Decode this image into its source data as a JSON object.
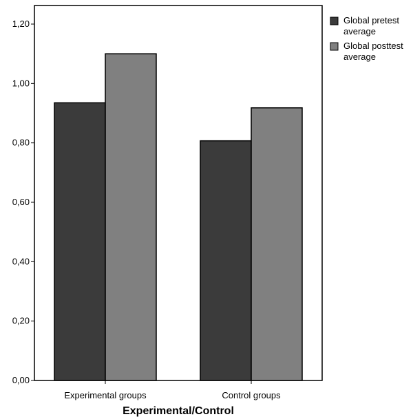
{
  "chart_data": {
    "type": "bar",
    "categories": [
      "Experimental groups",
      "Control groups"
    ],
    "series": [
      {
        "name": "Global pretest average",
        "values": [
          0.935,
          0.807
        ],
        "color": "#3b3b3b"
      },
      {
        "name": "Global posttest average",
        "values": [
          1.1,
          0.918
        ],
        "color": "#808080"
      }
    ],
    "xlabel": "Experimental/Control",
    "ylabel": "",
    "ylim": [
      0,
      1.2
    ],
    "yticks": [
      "0,00",
      "0,20",
      "0,40",
      "0,60",
      "0,80",
      "1,00",
      "1,20"
    ],
    "ytick_values": [
      0,
      0.2,
      0.4,
      0.6,
      0.8,
      1.0,
      1.2
    ],
    "grid": false,
    "legend_position": "top-right"
  }
}
